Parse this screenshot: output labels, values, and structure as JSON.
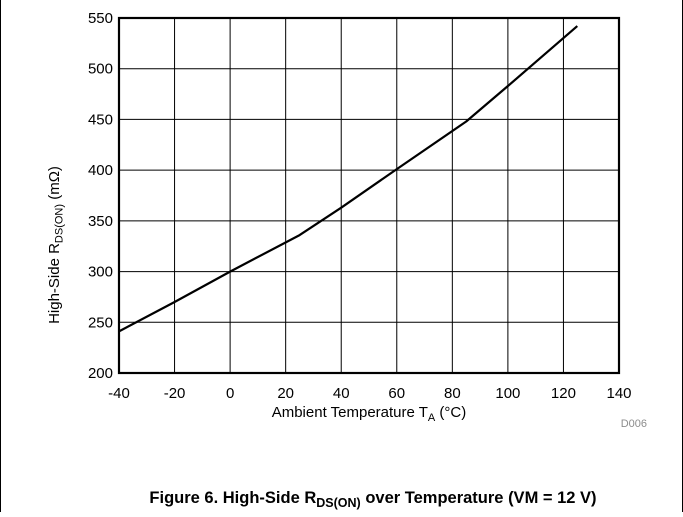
{
  "figure": {
    "code": "D006",
    "caption": {
      "prefix": "Figure 6. High-Side R",
      "sub": "DS(ON)",
      "suffix": " over Temperature (VM = 12 V)"
    }
  },
  "chart_data": {
    "type": "line",
    "title": "",
    "xlabel": {
      "prefix": "Ambient Temperature T",
      "sub": "A",
      "suffix": " (°C)"
    },
    "ylabel": {
      "prefix": "High-Side R",
      "sub": "DS(ON)",
      "suffix": " (mΩ)"
    },
    "xlim": [
      -40,
      140
    ],
    "ylim": [
      200,
      550
    ],
    "xticks": [
      -40,
      -20,
      0,
      20,
      40,
      60,
      80,
      100,
      120,
      140
    ],
    "yticks": [
      200,
      250,
      300,
      350,
      400,
      450,
      500,
      550
    ],
    "grid": true,
    "series": [
      {
        "x": [
          -40,
          -20,
          0,
          25,
          40,
          60,
          85,
          100,
          125
        ],
        "y": [
          241,
          270,
          300,
          336,
          363,
          401,
          448,
          483,
          542
        ]
      }
    ],
    "line_color": "#000000",
    "grid_color": "#000000"
  }
}
